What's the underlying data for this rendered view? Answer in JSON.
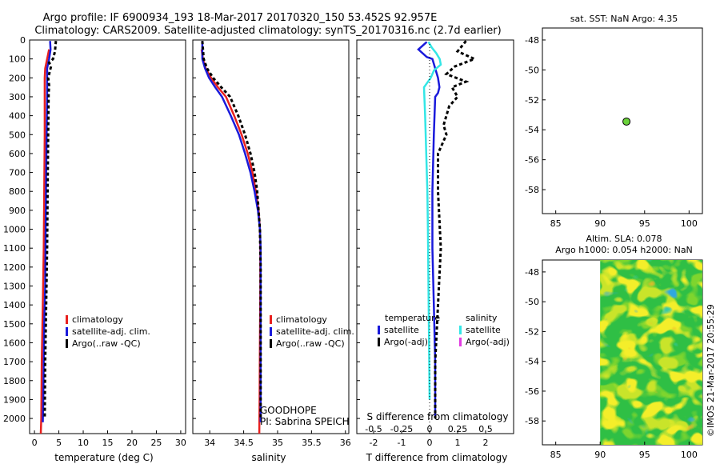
{
  "header": {
    "line1": "Argo profile: IF 6900934_193 18-Mar-2017 20170320_150 53.452S 92.957E",
    "line2": "Climatology: CARS2009. Satellite-adjusted climatology: synTS_20170316.nc (2.7d earlier)"
  },
  "colors": {
    "red": "#e8211f",
    "blue": "#1a1adb",
    "black": "#000000",
    "cyan": "#33e6e6",
    "magenta": "#e23be2",
    "marker": "#6ad23a"
  },
  "credit": "©IMOS 21-Mar-2017 20:55:29",
  "chart_data": [
    {
      "type": "line",
      "name": "temperature",
      "xlabel": "temperature (deg C)",
      "ylabel": "",
      "xlim": [
        -1,
        31
      ],
      "ylim": [
        2080,
        0
      ],
      "xticks": [
        "0",
        "5",
        "10",
        "15",
        "20",
        "25",
        "30"
      ],
      "yticks": [
        "0",
        "100",
        "200",
        "300",
        "400",
        "500",
        "600",
        "700",
        "800",
        "900",
        "1000",
        "1100",
        "1200",
        "1300",
        "1400",
        "1500",
        "1600",
        "1700",
        "1800",
        "1900",
        "2000"
      ],
      "legend": [
        "climatology",
        "satellite-adj. clim.",
        "Argo(..raw -QC)"
      ],
      "series": [
        {
          "name": "climatology",
          "color": "red",
          "style": "solid",
          "x": [
            3.0,
            2.6,
            2.2,
            2.1,
            2.1,
            2.1,
            2.0,
            1.9,
            1.7,
            1.5,
            1.4,
            1.3
          ],
          "y": [
            50,
            100,
            150,
            200,
            300,
            500,
            800,
            1100,
            1400,
            1700,
            2000,
            2080
          ]
        },
        {
          "name": "satellite-adj. clim.",
          "color": "blue",
          "style": "solid",
          "x": [
            3.2,
            3.3,
            3.0,
            2.6,
            2.6,
            2.6,
            2.5,
            2.4,
            2.3,
            2.2,
            2.0,
            1.9,
            1.8,
            1.7
          ],
          "y": [
            5,
            50,
            100,
            150,
            200,
            300,
            500,
            700,
            1000,
            1300,
            1500,
            1700,
            1900,
            2020
          ]
        },
        {
          "name": "Argo(..raw -QC)",
          "color": "black",
          "style": "dashed",
          "x": [
            4.4,
            4.2,
            3.8,
            3.0,
            3.4,
            2.8,
            3.0,
            2.9,
            2.8,
            2.7,
            2.6,
            2.4,
            2.2,
            2.1
          ],
          "y": [
            5,
            60,
            100,
            120,
            140,
            200,
            240,
            280,
            500,
            800,
            1100,
            1400,
            1700,
            2000
          ]
        }
      ]
    },
    {
      "type": "line",
      "name": "salinity",
      "xlabel": "salinity",
      "xlim": [
        33.75,
        36.05
      ],
      "ylim": [
        2080,
        0
      ],
      "xticks": [
        "34",
        "34.5",
        "35",
        "35.5",
        "36"
      ],
      "legend": [
        "climatology",
        "satellite-adj. clim.",
        "Argo(..raw -QC)"
      ],
      "annotation": [
        "GOODHOPE",
        "PI: Sabrina SPEICH"
      ],
      "series": [
        {
          "name": "climatology",
          "color": "red",
          "style": "solid",
          "x": [
            33.88,
            33.9,
            33.94,
            34.02,
            34.12,
            34.24,
            34.36,
            34.47,
            34.56,
            34.63,
            34.68,
            34.72,
            34.74,
            34.745,
            34.745,
            34.74,
            34.735,
            34.73
          ],
          "y": [
            50,
            100,
            150,
            200,
            250,
            300,
            400,
            500,
            600,
            700,
            800,
            900,
            1000,
            1100,
            1300,
            1600,
            1900,
            2080
          ]
        },
        {
          "name": "satellite-adj. clim.",
          "color": "blue",
          "style": "solid",
          "x": [
            33.89,
            33.89,
            33.93,
            33.99,
            34.08,
            34.18,
            34.31,
            34.43,
            34.52,
            34.6,
            34.66,
            34.71,
            34.74,
            34.75,
            34.75,
            34.75,
            34.75
          ],
          "y": [
            5,
            100,
            150,
            200,
            250,
            300,
            400,
            500,
            600,
            700,
            800,
            900,
            1000,
            1100,
            1300,
            1700,
            2020
          ]
        },
        {
          "name": "Argo(..raw -QC)",
          "color": "black",
          "style": "dashed",
          "x": [
            33.89,
            33.91,
            33.96,
            34.05,
            34.17,
            34.3,
            34.42,
            34.52,
            34.6,
            34.66,
            34.7,
            34.72,
            34.74,
            34.75,
            34.75,
            34.75
          ],
          "y": [
            5,
            100,
            150,
            200,
            250,
            300,
            400,
            500,
            600,
            700,
            800,
            900,
            1000,
            1200,
            1600,
            2000
          ]
        }
      ]
    },
    {
      "type": "line",
      "name": "difference",
      "xlabel": "T difference from climatology",
      "x2label": "S difference from climatology",
      "xlim": [
        -2.6,
        3.0
      ],
      "x2lim": [
        -0.65,
        0.75
      ],
      "ylim": [
        2080,
        0
      ],
      "xticks": [
        "-2",
        "-1",
        "0",
        "1",
        "2"
      ],
      "x2ticks": [
        "-0.5",
        "-0.25",
        "0",
        "0.25",
        "0.5"
      ],
      "legend_headers": [
        "temperature",
        "salinity"
      ],
      "legend_t": [
        "satellite",
        "Argo(-adj)"
      ],
      "legend_s": [
        "satellite",
        "Argo(-adj)"
      ],
      "series": [
        {
          "name": "T satellite",
          "color": "blue",
          "style": "solid",
          "x": [
            -0.1,
            -0.4,
            -0.1,
            0.1,
            0.2,
            0.3,
            0.35,
            0.3,
            0.2,
            0.15,
            0.1,
            0.1,
            0.15,
            0.2,
            0.2,
            0.2
          ],
          "y": [
            10,
            50,
            90,
            100,
            150,
            200,
            250,
            280,
            300,
            500,
            800,
            1100,
            1400,
            1700,
            1900,
            2000
          ]
        },
        {
          "name": "T Argo(-adj)",
          "color": "black",
          "style": "dashed",
          "x": [
            1.3,
            1.0,
            1.6,
            0.9,
            0.6,
            1.3,
            0.8,
            1.0,
            0.7,
            0.5,
            0.6,
            0.3,
            0.3,
            0.4,
            0.3,
            0.2,
            0.2
          ],
          "y": [
            5,
            60,
            100,
            140,
            180,
            220,
            250,
            300,
            350,
            450,
            500,
            600,
            800,
            1100,
            1400,
            1700,
            2000
          ]
        },
        {
          "name": "S satellite",
          "color": "cyan",
          "style": "solid",
          "x": [
            -0.01,
            0.02,
            0.06,
            0.09,
            0.1,
            0.04,
            0.01,
            -0.05,
            -0.04,
            -0.03,
            -0.02,
            -0.015,
            -0.01,
            -0.005,
            0.0
          ],
          "y": [
            10,
            40,
            70,
            100,
            130,
            160,
            200,
            250,
            400,
            600,
            800,
            1000,
            1300,
            1600,
            1900
          ]
        }
      ]
    },
    {
      "type": "scatter",
      "name": "location",
      "title": "sat. SST: NaN Argo: 4.35",
      "xlim": [
        83.5,
        101.5
      ],
      "ylim": [
        -59.6,
        -47.2
      ],
      "xticks": [
        "85",
        "90",
        "95",
        "100"
      ],
      "yticks": [
        "-48",
        "-50",
        "-52",
        "-54",
        "-56",
        "-58"
      ],
      "points": [
        {
          "x": 92.957,
          "y": -53.452
        }
      ]
    },
    {
      "type": "heatmap",
      "name": "altimetry",
      "title1": "Altim. SLA: 0.078",
      "title2": "Argo h1000: 0.054 h2000: NaN",
      "xlim": [
        83.5,
        101.5
      ],
      "ylim": [
        -59.6,
        -47.2
      ],
      "xticks": [
        "85",
        "90",
        "95",
        "100"
      ],
      "yticks": [
        "-48",
        "-50",
        "-52",
        "-54",
        "-56",
        "-58"
      ],
      "data_xrange": [
        90,
        101.5
      ],
      "colormap": [
        "#2fa8e0",
        "#3ac9a8",
        "#2fbf45",
        "#7ed52e",
        "#c9e42a",
        "#f4ee2a",
        "#f4b82a",
        "#f08a2a"
      ]
    }
  ]
}
